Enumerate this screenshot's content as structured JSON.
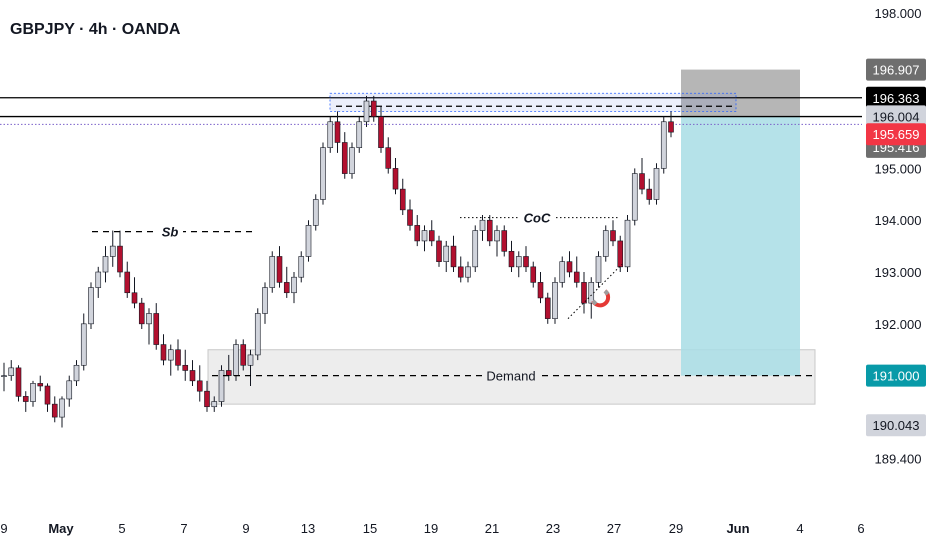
{
  "header": {
    "title": "GBPJPY · 4h · OANDA"
  },
  "colors": {
    "bull_body": "#d1d4dc",
    "bear_body": "#b2102f",
    "wick": "#131722",
    "target_zone": "#a8dde5",
    "stop_zone": "#9e9e9e",
    "demand_zone": "#ededed",
    "tag_red": "#f23645",
    "tag_teal": "#089aa8",
    "tag_black": "#000000",
    "tag_gray": "#6e6e6e",
    "tag_light": "#d1d4dc"
  },
  "chart_data": {
    "type": "candlestick",
    "symbol": "GBPJPY",
    "timeframe": "4h",
    "broker": "OANDA",
    "y_axis": {
      "min": 188.6,
      "max": 198.25,
      "ticks": [
        "198.000",
        "195.000",
        "194.000",
        "193.000",
        "192.000",
        "189.400"
      ]
    },
    "x_axis": {
      "ticks": [
        {
          "label": "9",
          "bold": false
        },
        {
          "label": "May",
          "bold": true
        },
        {
          "label": "5",
          "bold": false
        },
        {
          "label": "7",
          "bold": false
        },
        {
          "label": "9",
          "bold": false
        },
        {
          "label": "13",
          "bold": false
        },
        {
          "label": "15",
          "bold": false
        },
        {
          "label": "19",
          "bold": false
        },
        {
          "label": "21",
          "bold": false
        },
        {
          "label": "23",
          "bold": false
        },
        {
          "label": "27",
          "bold": false
        },
        {
          "label": "29",
          "bold": false
        },
        {
          "label": "Jun",
          "bold": true
        },
        {
          "label": "4",
          "bold": false
        },
        {
          "label": "6",
          "bold": false
        }
      ]
    },
    "price_tags": [
      {
        "label": "196.907",
        "value": 196.907,
        "style": "gray"
      },
      {
        "label": "196.363",
        "value": 196.363,
        "style": "black"
      },
      {
        "label": "196.004",
        "value": 196.004,
        "style": "light"
      },
      {
        "label": "195.416",
        "value": 195.416,
        "style": "gray"
      },
      {
        "label": "195.659",
        "value": 195.659,
        "style": "red"
      },
      {
        "label": "191.000",
        "value": 191.0,
        "style": "teal"
      },
      {
        "label": "190.043",
        "value": 190.043,
        "style": "light"
      }
    ],
    "horizontal_lines": [
      {
        "value": 196.363,
        "style": "solid",
        "color": "#000000"
      },
      {
        "value": 196.0,
        "style": "solid",
        "color": "#000000"
      },
      {
        "value": 195.85,
        "style": "dotted",
        "color": "#7b61c9"
      }
    ],
    "annotations": [
      {
        "label": "Sb",
        "value": 193.78
      },
      {
        "label": "CoC",
        "value": 194.05
      },
      {
        "label": "Demand",
        "value": 191.0
      }
    ],
    "zones": {
      "demand": {
        "top": 191.5,
        "bottom": 190.45
      },
      "stop_loss": {
        "top": 196.907,
        "bottom": 196.004
      },
      "take_profit": {
        "top": 196.004,
        "bottom": 191.0
      }
    },
    "candles": [
      [
        191.0,
        191.25,
        190.7,
        191.0
      ],
      [
        191.0,
        191.3,
        190.9,
        191.15
      ],
      [
        191.15,
        191.2,
        190.5,
        190.6
      ],
      [
        190.6,
        190.7,
        190.3,
        190.5
      ],
      [
        190.5,
        190.9,
        190.4,
        190.85
      ],
      [
        190.85,
        191.0,
        190.7,
        190.8
      ],
      [
        190.8,
        190.85,
        190.3,
        190.45
      ],
      [
        190.45,
        190.6,
        190.1,
        190.2
      ],
      [
        190.2,
        190.6,
        190.0,
        190.55
      ],
      [
        190.55,
        191.0,
        190.4,
        190.9
      ],
      [
        190.9,
        191.3,
        190.8,
        191.2
      ],
      [
        191.2,
        192.2,
        191.1,
        192.0
      ],
      [
        192.0,
        192.8,
        191.9,
        192.7
      ],
      [
        192.7,
        193.1,
        192.5,
        193.0
      ],
      [
        193.0,
        193.5,
        192.8,
        193.3
      ],
      [
        193.3,
        193.8,
        193.1,
        193.5
      ],
      [
        193.5,
        193.8,
        192.9,
        193.0
      ],
      [
        193.0,
        193.2,
        192.5,
        192.6
      ],
      [
        192.6,
        192.9,
        192.3,
        192.4
      ],
      [
        192.4,
        192.5,
        191.9,
        192.0
      ],
      [
        192.0,
        192.3,
        191.6,
        192.2
      ],
      [
        192.2,
        192.4,
        191.5,
        191.6
      ],
      [
        191.6,
        191.8,
        191.2,
        191.3
      ],
      [
        191.3,
        191.6,
        191.0,
        191.5
      ],
      [
        191.5,
        191.7,
        191.1,
        191.2
      ],
      [
        191.2,
        191.5,
        190.9,
        191.1
      ],
      [
        191.1,
        191.3,
        190.8,
        190.9
      ],
      [
        190.9,
        191.2,
        190.5,
        190.7
      ],
      [
        190.7,
        190.9,
        190.3,
        190.4
      ],
      [
        190.4,
        190.6,
        190.3,
        190.5
      ],
      [
        190.5,
        191.2,
        190.4,
        191.1
      ],
      [
        191.1,
        191.4,
        190.9,
        191.0
      ],
      [
        191.0,
        191.7,
        190.9,
        191.6
      ],
      [
        191.6,
        191.7,
        191.1,
        191.2
      ],
      [
        191.2,
        191.5,
        190.8,
        191.4
      ],
      [
        191.4,
        192.3,
        191.3,
        192.2
      ],
      [
        192.2,
        192.8,
        192.0,
        192.7
      ],
      [
        192.7,
        193.4,
        192.6,
        193.3
      ],
      [
        193.3,
        193.5,
        192.7,
        192.8
      ],
      [
        192.8,
        193.1,
        192.5,
        192.6
      ],
      [
        192.6,
        193.0,
        192.4,
        192.9
      ],
      [
        192.9,
        193.4,
        192.8,
        193.3
      ],
      [
        193.3,
        194.0,
        193.2,
        193.9
      ],
      [
        193.9,
        194.5,
        193.8,
        194.4
      ],
      [
        194.4,
        195.5,
        194.3,
        195.4
      ],
      [
        195.4,
        196.0,
        195.3,
        195.9
      ],
      [
        195.9,
        196.1,
        195.3,
        195.5
      ],
      [
        195.5,
        195.7,
        194.8,
        194.9
      ],
      [
        194.9,
        195.5,
        194.8,
        195.4
      ],
      [
        195.4,
        196.0,
        195.3,
        195.9
      ],
      [
        195.9,
        196.4,
        195.8,
        196.3
      ],
      [
        196.3,
        196.4,
        195.9,
        196.0
      ],
      [
        196.0,
        196.2,
        195.3,
        195.4
      ],
      [
        195.4,
        195.6,
        194.9,
        195.0
      ],
      [
        195.0,
        195.2,
        194.5,
        194.6
      ],
      [
        194.6,
        194.8,
        194.1,
        194.2
      ],
      [
        194.2,
        194.4,
        193.8,
        193.9
      ],
      [
        193.9,
        194.1,
        193.5,
        193.6
      ],
      [
        193.6,
        193.9,
        193.4,
        193.8
      ],
      [
        193.8,
        194.0,
        193.5,
        193.6
      ],
      [
        193.6,
        193.7,
        193.1,
        193.2
      ],
      [
        193.2,
        193.6,
        193.0,
        193.5
      ],
      [
        193.5,
        193.7,
        193.0,
        193.1
      ],
      [
        193.1,
        193.3,
        192.8,
        192.9
      ],
      [
        192.9,
        193.2,
        192.8,
        193.1
      ],
      [
        193.1,
        193.9,
        193.0,
        193.8
      ],
      [
        193.8,
        194.1,
        193.6,
        194.0
      ],
      [
        194.0,
        194.1,
        193.5,
        193.6
      ],
      [
        193.6,
        193.9,
        193.3,
        193.8
      ],
      [
        193.8,
        193.9,
        193.3,
        193.4
      ],
      [
        193.4,
        193.6,
        193.0,
        193.1
      ],
      [
        193.1,
        193.4,
        192.9,
        193.3
      ],
      [
        193.3,
        193.5,
        193.0,
        193.1
      ],
      [
        193.1,
        193.2,
        192.7,
        192.8
      ],
      [
        192.8,
        193.0,
        192.4,
        192.5
      ],
      [
        192.5,
        192.6,
        192.0,
        192.1
      ],
      [
        192.1,
        192.9,
        192.0,
        192.8
      ],
      [
        192.8,
        193.3,
        192.7,
        193.2
      ],
      [
        193.2,
        193.4,
        192.9,
        193.0
      ],
      [
        193.0,
        193.3,
        192.7,
        192.8
      ],
      [
        192.8,
        193.0,
        192.2,
        192.4
      ],
      [
        192.4,
        192.9,
        192.1,
        192.8
      ],
      [
        192.8,
        193.4,
        192.7,
        193.3
      ],
      [
        193.3,
        193.9,
        193.2,
        193.8
      ],
      [
        193.8,
        194.0,
        193.5,
        193.6
      ],
      [
        193.6,
        193.7,
        193.0,
        193.1
      ],
      [
        193.1,
        194.1,
        193.0,
        194.0
      ],
      [
        194.0,
        195.0,
        193.9,
        194.9
      ],
      [
        194.9,
        195.2,
        194.5,
        194.6
      ],
      [
        194.6,
        194.8,
        194.3,
        194.4
      ],
      [
        194.4,
        195.1,
        194.3,
        195.0
      ],
      [
        195.0,
        196.0,
        194.9,
        195.9
      ],
      [
        195.9,
        196.1,
        195.6,
        195.7
      ]
    ]
  }
}
